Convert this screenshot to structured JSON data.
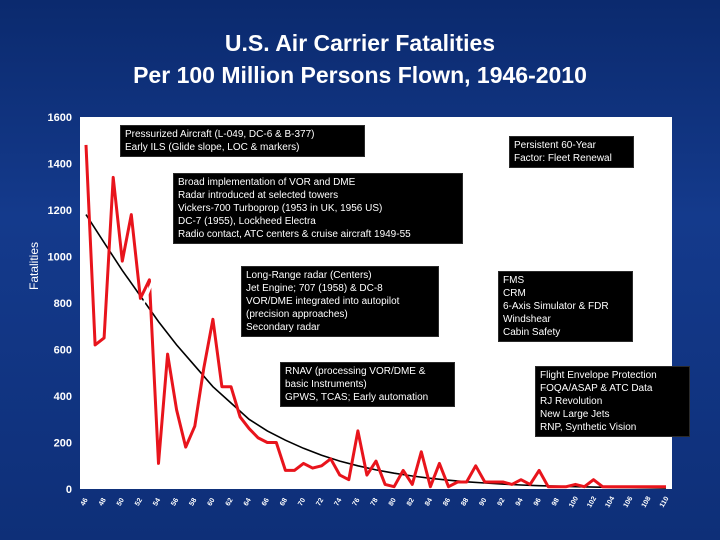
{
  "title_line1": "U.S. Air Carrier Fatalities",
  "title_line2": "Per 100 Million Persons Flown, 1946-2010",
  "colors": {
    "background": "#0b2a6e",
    "plot": "#ffffff",
    "series": "#e8141c",
    "trend": "#000000",
    "annotation_box": "#000000"
  },
  "chart_data": {
    "type": "line",
    "ylabel": "Fatalities",
    "ylim": [
      0,
      1600
    ],
    "xlim": [
      1946,
      2010
    ],
    "y_ticks": [
      "0",
      "200",
      "400",
      "600",
      "800",
      "1000",
      "1200",
      "1400",
      "1600"
    ],
    "x_ticks": [
      "46",
      "48",
      "50",
      "52",
      "54",
      "56",
      "58",
      "60",
      "62",
      "64",
      "66",
      "68",
      "70",
      "72",
      "74",
      "76",
      "78",
      "80",
      "82",
      "84",
      "86",
      "88",
      "90",
      "92",
      "94",
      "96",
      "98",
      "100",
      "102",
      "104",
      "106",
      "108",
      "110"
    ],
    "grid": false,
    "series": [
      {
        "kind": "actual",
        "x": [
          1946,
          1947,
          1948,
          1949,
          1950,
          1951,
          1952,
          1953,
          1954,
          1955,
          1956,
          1957,
          1958,
          1959,
          1960,
          1961,
          1962,
          1963,
          1964,
          1965,
          1966,
          1967,
          1968,
          1969,
          1970,
          1971,
          1972,
          1973,
          1974,
          1975,
          1976,
          1977,
          1978,
          1979,
          1980,
          1981,
          1982,
          1983,
          1984,
          1985,
          1986,
          1987,
          1988,
          1989,
          1990,
          1991,
          1992,
          1993,
          1994,
          1995,
          1996,
          1997,
          1998,
          1999,
          2000,
          2001,
          2002,
          2003,
          2004,
          2005,
          2006,
          2007,
          2008,
          2009,
          2010
        ],
        "y": [
          1480,
          620,
          650,
          1340,
          980,
          1180,
          820,
          900,
          110,
          580,
          340,
          180,
          270,
          520,
          730,
          440,
          440,
          310,
          260,
          220,
          200,
          200,
          80,
          80,
          110,
          90,
          100,
          130,
          60,
          40,
          250,
          60,
          120,
          20,
          10,
          80,
          20,
          160,
          10,
          110,
          10,
          30,
          30,
          100,
          30,
          30,
          30,
          20,
          40,
          20,
          80,
          10,
          10,
          10,
          20,
          10,
          40,
          10,
          10,
          10,
          10,
          10,
          10,
          10,
          10
        ]
      },
      {
        "kind": "trend",
        "x": [
          1946,
          1948,
          1950,
          1952,
          1954,
          1956,
          1958,
          1960,
          1962,
          1964,
          1966,
          1968,
          1970,
          1972,
          1974,
          1976,
          1978,
          1980,
          1982,
          1984,
          1986,
          1988,
          1990,
          1992,
          1994,
          1996,
          1998,
          2000,
          2002,
          2004,
          2006,
          2008,
          2010
        ],
        "y": [
          1180,
          1060,
          940,
          830,
          720,
          620,
          530,
          440,
          370,
          300,
          250,
          210,
          175,
          145,
          120,
          100,
          82,
          68,
          56,
          46,
          38,
          31,
          26,
          21,
          17,
          14,
          12,
          10,
          8,
          7,
          6,
          5,
          4
        ]
      }
    ]
  },
  "annotations": [
    {
      "id": "pressurized",
      "text": "Pressurized Aircraft (L-049, DC-6 & B-377)\nEarly ILS (Glide slope, LOC &  markers)"
    },
    {
      "id": "persistent",
      "text": "Persistent 60-Year\nFactor: Fleet Renewal"
    },
    {
      "id": "vor",
      "text": "Broad implementation of VOR and DME\nRadar introduced at selected towers\nVickers-700 Turboprop (1953 in UK, 1956 US)\nDC-7 (1955), Lockheed Electra\nRadio contact, ATC centers & cruise aircraft 1949-55"
    },
    {
      "id": "longrange",
      "text": "Long-Range radar (Centers)\nJet Engine; 707 (1958) & DC-8\nVOR/DME integrated into autopilot\n(precision approaches)\nSecondary radar"
    },
    {
      "id": "fms",
      "text": "FMS\nCRM\n6-Axis Simulator & FDR\nWindshear\nCabin Safety"
    },
    {
      "id": "rnav",
      "text": "RNAV (processing VOR/DME &\nbasic Instruments)\nGPWS, TCAS; Early automation"
    },
    {
      "id": "flightenv",
      "text": "Flight Envelope Protection\nFOQA/ASAP & ATC Data\nRJ Revolution\nNew Large Jets\nRNP, Synthetic Vision"
    }
  ]
}
